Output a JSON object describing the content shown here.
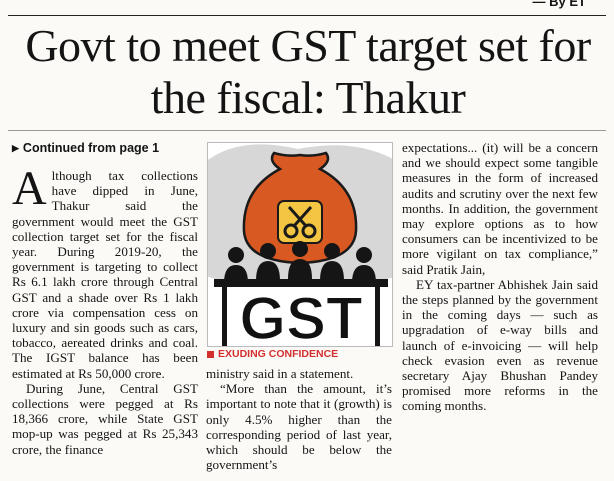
{
  "byline": "By ET",
  "headline": "Govt to meet GST target set for the fiscal: Thakur",
  "continued": "Continued from page 1",
  "image": {
    "gst_text": "GST",
    "caption": "EXUDING CONFIDENCE",
    "colors": {
      "bag": "#d85a22",
      "label": "#f4c542",
      "blob": "#d7d7d7",
      "accent": "#d32f2f"
    }
  },
  "article": {
    "col1": {
      "dropcap": "A",
      "p1": "lthough tax collections have dipped in June, Thakur said the government would meet the GST collection target set for the fiscal year. During 2019-20, the government is targeting to collect Rs 6.1 lakh crore through Central GST and a shade over Rs 1 lakh crore via compensation cess on luxury and sin goods such as cars, tobacco, aereated drinks and coal. The IGST balance has been estimated at Rs 50,000 crore.",
      "p2": "During June, Central GST collections were pegged at Rs 18,366 crore, while State GST mop-up was pegged at Rs 25,343 crore, the finance"
    },
    "col2": {
      "p1": "ministry said in a statement.",
      "p2": "“More than the amount, it’s important to note that it (growth) is only 4.5% higher than the corresponding period of last year, which should be below the government’s"
    },
    "col3": {
      "p1": "expectations... (it) will be a concern and we should expect some tangible measures in the form of increased audits and scrutiny over the next few months. In addition, the government may explore options as to how consumers can be incentivized to be more vigilant on tax compliance,” said Pratik Jain,",
      "p2": "EY tax-partner Abhishek Jain said the steps planned by the government in the coming days — such as upgradation of e-way bills and launch of e-invoicing — will help check evasion even as revenue secretary Ajay Bhushan Pandey promised more reforms in the coming months."
    }
  }
}
